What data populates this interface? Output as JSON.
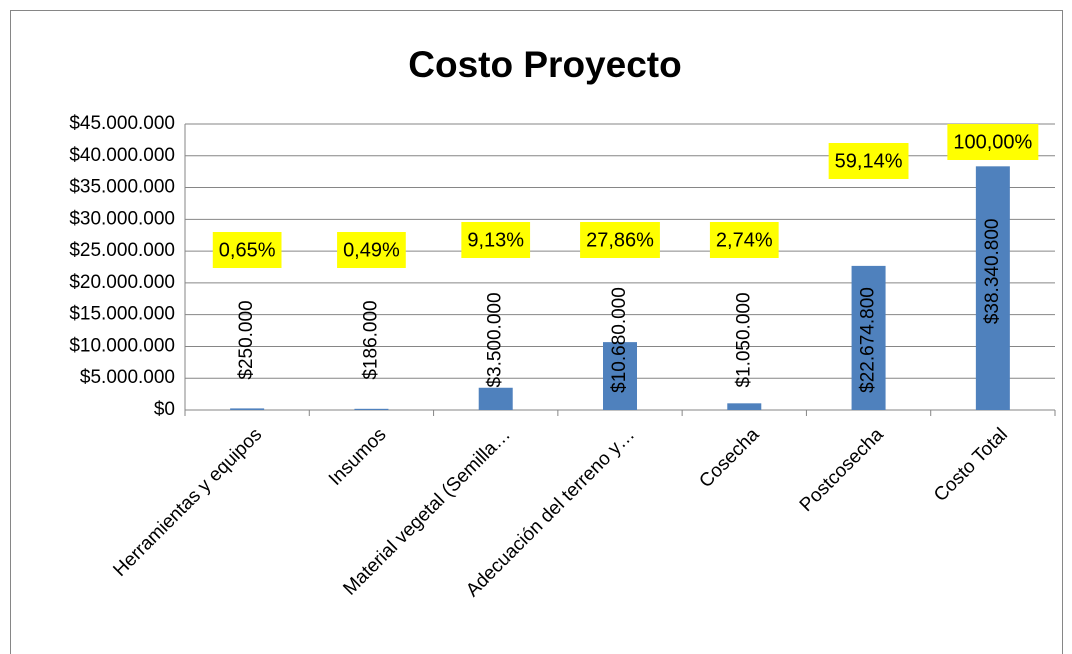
{
  "chart_data": {
    "type": "bar",
    "title": "Costo Proyecto",
    "categories": [
      "Herramientas y equipos",
      "Insumos",
      "Material vegetal (Semilla…",
      "Adecuación del terreno y…",
      "Cosecha",
      "Postcosecha",
      "Costo Total"
    ],
    "values": [
      250000,
      186000,
      3500000,
      10680000,
      1050000,
      22674800,
      38340800
    ],
    "value_labels": [
      "$250.000",
      "$186.000",
      "$3.500.000",
      "$10.680.000",
      "$1.050.000",
      "$22.674.800",
      "$38.340.800"
    ],
    "annotations": [
      "0,65%",
      "0,49%",
      "9,13%",
      "27,86%",
      "2,74%",
      "59,14%",
      "100,00%"
    ],
    "color": "#4f81bd",
    "ylim": [
      0,
      45000000
    ],
    "yticks": [
      {
        "value": 0,
        "label": "$0"
      },
      {
        "value": 5000000,
        "label": "$5.000.000"
      },
      {
        "value": 10000000,
        "label": "$10.000.000"
      },
      {
        "value": 15000000,
        "label": "$15.000.000"
      },
      {
        "value": 20000000,
        "label": "$20.000.000"
      },
      {
        "value": 25000000,
        "label": "$25.000.000"
      },
      {
        "value": 30000000,
        "label": "$30.000.000"
      },
      {
        "value": 35000000,
        "label": "$35.000.000"
      },
      {
        "value": 40000000,
        "label": "$40.000.000"
      },
      {
        "value": 45000000,
        "label": "$45.000.000"
      }
    ],
    "grid": true
  }
}
